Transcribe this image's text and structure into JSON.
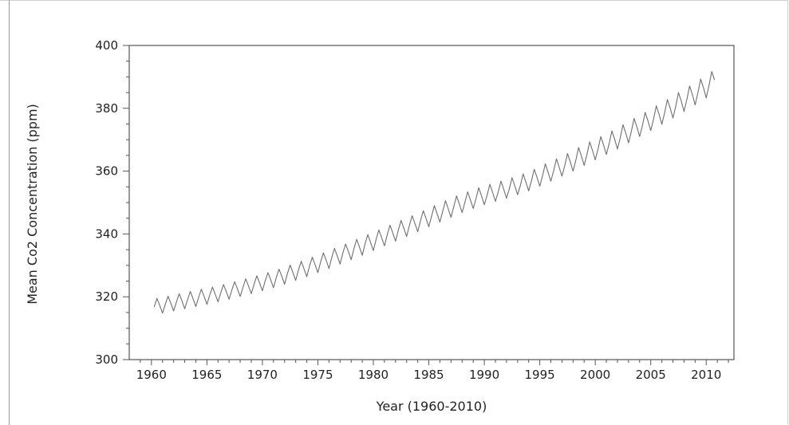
{
  "chart_data": {
    "type": "line",
    "xlabel": "Year (1960-2010)",
    "ylabel": "Mean Co2 Concentration (ppm)",
    "xlim": [
      1958,
      2012.5
    ],
    "ylim": [
      300,
      400
    ],
    "xticks": [
      1960,
      1965,
      1970,
      1975,
      1980,
      1985,
      1990,
      1995,
      2000,
      2005,
      2010
    ],
    "yticks": [
      300,
      320,
      340,
      360,
      380,
      400
    ],
    "grid": false,
    "legend": "none",
    "line_color": "#6f6f6f",
    "x_start": 1960.25,
    "x_step": 0.25,
    "series": [
      {
        "values": [
          316.8,
          319.5,
          317.2,
          314.8,
          317.6,
          320.2,
          317.9,
          315.5,
          318.3,
          321.0,
          318.7,
          316.2,
          319.0,
          321.7,
          319.4,
          316.9,
          319.8,
          322.4,
          320.1,
          317.6,
          320.5,
          323.1,
          320.8,
          318.4,
          321.3,
          323.9,
          321.6,
          319.2,
          322.2,
          324.8,
          322.5,
          320.1,
          323.0,
          325.7,
          323.4,
          321.0,
          324.0,
          326.7,
          324.4,
          321.9,
          325.0,
          327.7,
          325.4,
          322.9,
          326.1,
          328.8,
          326.5,
          324.0,
          327.3,
          330.1,
          327.7,
          325.2,
          328.5,
          331.3,
          328.9,
          326.4,
          329.8,
          332.6,
          330.2,
          327.7,
          331.1,
          334.0,
          331.6,
          329.0,
          332.5,
          335.4,
          333.0,
          330.4,
          333.9,
          336.8,
          334.4,
          331.8,
          335.3,
          338.3,
          335.8,
          333.2,
          336.8,
          339.8,
          337.3,
          334.7,
          338.3,
          341.3,
          338.8,
          336.2,
          339.7,
          342.8,
          340.3,
          337.7,
          341.2,
          344.3,
          341.8,
          339.2,
          342.7,
          345.8,
          343.3,
          340.7,
          344.2,
          347.4,
          344.9,
          342.3,
          345.7,
          349.0,
          346.4,
          343.8,
          347.2,
          350.6,
          348.0,
          345.3,
          348.7,
          352.1,
          349.5,
          346.8,
          350.0,
          353.4,
          350.8,
          348.1,
          351.2,
          354.7,
          352.1,
          349.3,
          352.3,
          355.8,
          353.2,
          350.4,
          353.3,
          356.8,
          354.2,
          351.4,
          354.3,
          357.9,
          355.3,
          352.5,
          355.4,
          359.1,
          356.5,
          353.7,
          356.9,
          360.6,
          358.0,
          355.2,
          358.5,
          362.3,
          359.6,
          356.8,
          360.1,
          363.9,
          361.2,
          358.4,
          361.7,
          365.6,
          362.9,
          360.0,
          363.5,
          367.5,
          364.8,
          361.8,
          365.3,
          369.3,
          366.6,
          363.6,
          367.0,
          371.0,
          368.3,
          365.3,
          368.7,
          372.8,
          370.1,
          367.0,
          370.6,
          374.8,
          372.1,
          369.0,
          372.6,
          376.8,
          374.1,
          371.0,
          374.5,
          378.7,
          376.0,
          372.9,
          376.5,
          380.8,
          378.1,
          374.9,
          378.5,
          382.8,
          380.1,
          376.9,
          380.6,
          385.0,
          382.3,
          379.0,
          382.7,
          387.1,
          384.4,
          381.1,
          384.9,
          389.3,
          386.6,
          383.3,
          387.2,
          391.7,
          389.0
        ]
      }
    ]
  }
}
